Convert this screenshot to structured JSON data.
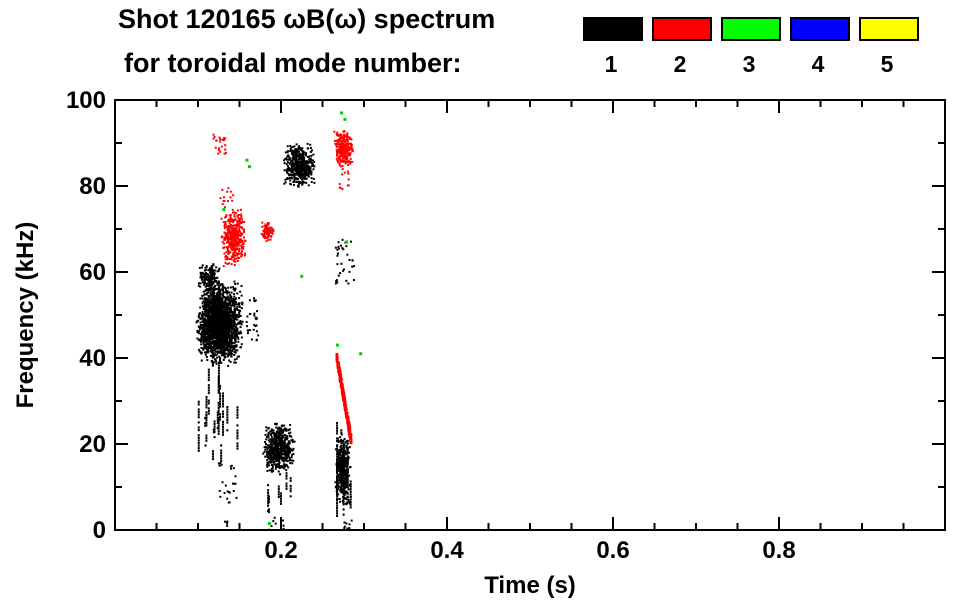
{
  "chart_data": {
    "type": "scatter",
    "title": "Shot 120165 ωB(ω) spectrum",
    "subtitle": "for toroidal mode number:",
    "xlabel": "Time (s)",
    "ylabel": "Frequency (kHz)",
    "xlim": [
      0,
      1.0
    ],
    "ylim": [
      0,
      100
    ],
    "xticks": [
      0.2,
      0.4,
      0.6,
      0.8
    ],
    "xtick_labels": [
      "0.2",
      "0.4",
      "0.6",
      "0.8"
    ],
    "yticks": [
      0,
      20,
      40,
      60,
      80,
      100
    ],
    "ytick_labels": [
      "0",
      "20",
      "40",
      "60",
      "80",
      "100"
    ],
    "grid": false,
    "legend_position": "top-right",
    "legend": [
      {
        "label": "1",
        "color": "#000000"
      },
      {
        "label": "2",
        "color": "#ff0000"
      },
      {
        "label": "3",
        "color": "#00ff00"
      },
      {
        "label": "4",
        "color": "#0000ff"
      },
      {
        "label": "5",
        "color": "#ffff00"
      }
    ],
    "clusters": [
      {
        "name": "n1-main-blob",
        "mode": 1,
        "color": "#000000",
        "shape": "blob",
        "t": [
          0.098,
          0.156
        ],
        "f": [
          38,
          58
        ],
        "n": 1500,
        "size": 2
      },
      {
        "name": "n1-main-core",
        "mode": 1,
        "color": "#000000",
        "shape": "blob",
        "t": [
          0.104,
          0.142
        ],
        "f": [
          41,
          56
        ],
        "n": 700,
        "size": 2
      },
      {
        "name": "n1-main-top",
        "mode": 1,
        "color": "#000000",
        "shape": "blob",
        "t": [
          0.1,
          0.128
        ],
        "f": [
          55,
          62
        ],
        "n": 150,
        "size": 2
      },
      {
        "name": "n1-main-right-dots",
        "mode": 1,
        "color": "#000000",
        "shape": "dots",
        "t": [
          0.158,
          0.173
        ],
        "f": [
          44,
          54
        ],
        "n": 30,
        "size": 2
      },
      {
        "name": "n1-main-tail-streaks",
        "mode": 1,
        "color": "#000000",
        "shape": "vstreaks",
        "t": [
          0.1,
          0.148
        ],
        "f": [
          14,
          40
        ],
        "n": 18,
        "size": 2
      },
      {
        "name": "n1-main-deep-dots",
        "mode": 1,
        "color": "#000000",
        "shape": "dots",
        "t": [
          0.125,
          0.148
        ],
        "f": [
          6,
          16
        ],
        "n": 25,
        "size": 2
      },
      {
        "name": "n1-bottom-dots-1",
        "mode": 1,
        "color": "#000000",
        "shape": "dots",
        "t": [
          0.132,
          0.14
        ],
        "f": [
          0.5,
          2.5
        ],
        "n": 5,
        "size": 2
      },
      {
        "name": "n1-20khz-blob",
        "mode": 1,
        "color": "#000000",
        "shape": "blob",
        "t": [
          0.178,
          0.217
        ],
        "f": [
          13,
          25
        ],
        "n": 550,
        "size": 2
      },
      {
        "name": "n1-20khz-under",
        "mode": 1,
        "color": "#000000",
        "shape": "vstreaks",
        "t": [
          0.182,
          0.212
        ],
        "f": [
          3,
          14
        ],
        "n": 7,
        "size": 2
      },
      {
        "name": "n1-bottom-dots-2",
        "mode": 1,
        "color": "#000000",
        "shape": "dots",
        "t": [
          0.183,
          0.205
        ],
        "f": [
          0,
          3
        ],
        "n": 8,
        "size": 2
      },
      {
        "name": "n1-85khz-blob",
        "mode": 1,
        "color": "#000000",
        "shape": "blob",
        "t": [
          0.202,
          0.242
        ],
        "f": [
          79.5,
          90
        ],
        "n": 500,
        "size": 2
      },
      {
        "name": "n1-late-streak-blob",
        "mode": 1,
        "color": "#000000",
        "shape": "blob",
        "t": [
          0.265,
          0.285
        ],
        "f": [
          5,
          23
        ],
        "n": 350,
        "size": 2
      },
      {
        "name": "n1-late-streaks",
        "mode": 1,
        "color": "#000000",
        "shape": "vstreaks",
        "t": [
          0.266,
          0.284
        ],
        "f": [
          3,
          26
        ],
        "n": 8,
        "size": 2
      },
      {
        "name": "n1-late-60khz-dots",
        "mode": 1,
        "color": "#000000",
        "shape": "dots",
        "t": [
          0.266,
          0.288
        ],
        "f": [
          57,
          68
        ],
        "n": 35,
        "size": 2
      },
      {
        "name": "n1-bottom-dots-3",
        "mode": 1,
        "color": "#000000",
        "shape": "dots",
        "t": [
          0.27,
          0.286
        ],
        "f": [
          0,
          3
        ],
        "n": 8,
        "size": 2
      },
      {
        "name": "n2-65khz-blob",
        "mode": 2,
        "color": "#ff0000",
        "shape": "blob",
        "t": [
          0.128,
          0.158
        ],
        "f": [
          61,
          75
        ],
        "n": 380,
        "size": 2
      },
      {
        "name": "n2-65khz-top-dots",
        "mode": 2,
        "color": "#ff0000",
        "shape": "dots",
        "t": [
          0.127,
          0.143
        ],
        "f": [
          75,
          79.5
        ],
        "n": 14,
        "size": 2
      },
      {
        "name": "n2-90khz-dots",
        "mode": 2,
        "color": "#ff0000",
        "shape": "dots",
        "t": [
          0.118,
          0.134
        ],
        "f": [
          87.5,
          92.5
        ],
        "n": 22,
        "size": 2
      },
      {
        "name": "n2-70khz-blob",
        "mode": 2,
        "color": "#ff0000",
        "shape": "blob",
        "t": [
          0.176,
          0.192
        ],
        "f": [
          67,
          72
        ],
        "n": 80,
        "size": 2
      },
      {
        "name": "n2-late-90khz-blob",
        "mode": 2,
        "color": "#ff0000",
        "shape": "blob",
        "t": [
          0.264,
          0.287
        ],
        "f": [
          84,
          93.5
        ],
        "n": 240,
        "size": 2
      },
      {
        "name": "n2-late-80khz-dots",
        "mode": 2,
        "color": "#ff0000",
        "shape": "dots",
        "t": [
          0.266,
          0.282
        ],
        "f": [
          79,
          84
        ],
        "n": 12,
        "size": 2
      },
      {
        "name": "n2-chirp-line",
        "mode": 2,
        "color": "#ff0000",
        "shape": "line",
        "t": [
          0.267,
          0.285
        ],
        "f": [
          40.5,
          20.5
        ],
        "n": 260,
        "size": 2.5,
        "jitter": 1.2
      }
    ],
    "points": [
      {
        "mode": 3,
        "color": "#00cc00",
        "t": 0.159,
        "f": 86
      },
      {
        "mode": 3,
        "color": "#00cc00",
        "t": 0.162,
        "f": 84.5
      },
      {
        "mode": 3,
        "color": "#00cc00",
        "t": 0.273,
        "f": 97
      },
      {
        "mode": 3,
        "color": "#00cc00",
        "t": 0.277,
        "f": 95.5
      },
      {
        "mode": 3,
        "color": "#00cc00",
        "t": 0.131,
        "f": 74.5
      },
      {
        "mode": 3,
        "color": "#00cc00",
        "t": 0.268,
        "f": 43
      },
      {
        "mode": 3,
        "color": "#00cc00",
        "t": 0.279,
        "f": 67
      },
      {
        "mode": 3,
        "color": "#00cc00",
        "t": 0.186,
        "f": 1.5
      },
      {
        "mode": 3,
        "color": "#00cc00",
        "t": 0.296,
        "f": 41
      },
      {
        "mode": 3,
        "color": "#00cc00",
        "t": 0.225,
        "f": 59
      }
    ]
  }
}
